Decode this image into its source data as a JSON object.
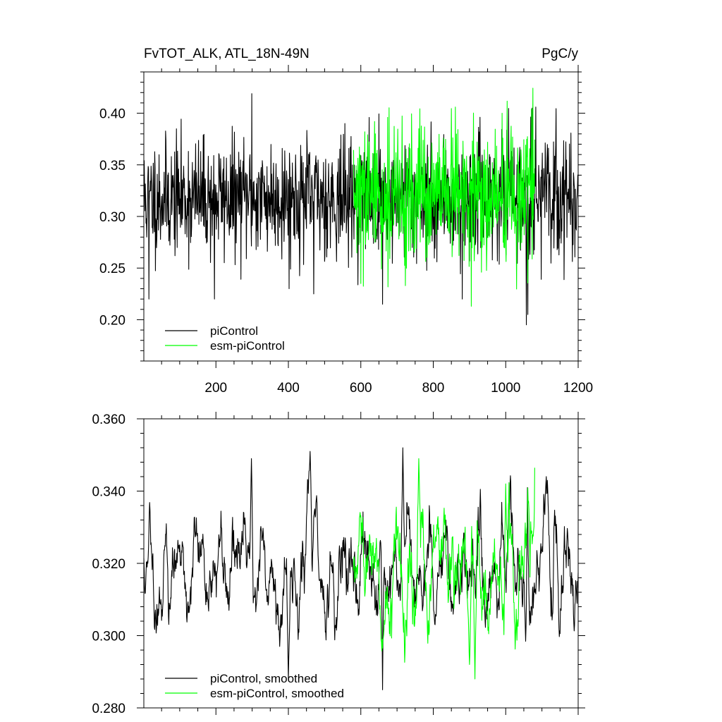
{
  "chart_data": [
    {
      "type": "line",
      "title_left": "FvTOT_ALK, ATL_18N-49N",
      "title_right": "PgC/y",
      "xlim": [
        1,
        1200
      ],
      "ylim": [
        0.16,
        0.44
      ],
      "xticks": [
        200,
        400,
        600,
        800,
        1000,
        1200
      ],
      "xtick_labels": [
        "200",
        "400",
        "600",
        "800",
        "1000",
        "1200"
      ],
      "yticks": [
        0.2,
        0.25,
        0.3,
        0.35,
        0.4
      ],
      "ytick_labels": [
        "0.20",
        "0.25",
        "0.30",
        "0.35",
        "0.40"
      ],
      "grid": false,
      "legend_position": "bottom-left",
      "series": [
        {
          "name": "piControl",
          "color": "#000000",
          "x_range": [
            1,
            1200
          ],
          "mean": 0.318,
          "std": 0.028,
          "seed": 11,
          "spikes": [
            [
              15,
              0.22
            ],
            [
              299,
              0.419
            ],
            [
              196,
              0.22
            ],
            [
              1057,
              0.195
            ],
            [
              1061,
              0.205
            ],
            [
              1073,
              0.405
            ],
            [
              660,
              0.215
            ],
            [
              880,
              0.22
            ],
            [
              470,
              0.225
            ],
            [
              402,
              0.23
            ],
            [
              1083,
              0.406
            ]
          ]
        },
        {
          "name": "esm-piControl",
          "color": "#00ff00",
          "x_range": [
            580,
            1080
          ],
          "mean": 0.318,
          "std": 0.033,
          "seed": 29,
          "spikes": [
            [
              861,
              0.406
            ],
            [
              1071,
              0.404
            ],
            [
              905,
              0.213
            ],
            [
              600,
              0.235
            ],
            [
              640,
              0.38
            ],
            [
              760,
              0.385
            ],
            [
              990,
              0.4
            ]
          ]
        }
      ]
    },
    {
      "type": "line",
      "xlim": [
        1,
        1200
      ],
      "ylim": [
        0.28,
        0.36
      ],
      "xticks": [
        200,
        400,
        600,
        800,
        1000,
        1200
      ],
      "yticks": [
        0.28,
        0.3,
        0.32,
        0.34,
        0.36
      ],
      "ytick_labels": [
        "0.280",
        "0.300",
        "0.320",
        "0.340",
        "0.360"
      ],
      "grid": false,
      "legend_position": "bottom-left",
      "series": [
        {
          "name": "piControl, smoothed",
          "color": "#000000",
          "x_range": [
            1,
            1200
          ],
          "mean": 0.318,
          "std": 0.0085,
          "seed": 11,
          "spikes": [
            [
              460,
              0.351
            ],
            [
              298,
              0.349
            ],
            [
              716,
              0.352
            ],
            [
              660,
              0.351
            ],
            [
              400,
              0.288
            ],
            [
              660,
              0.285
            ],
            [
              1057,
              0.287
            ],
            [
              1060,
              0.341
            ]
          ]
        },
        {
          "name": "esm-piControl, smoothed",
          "color": "#00ff00",
          "x_range": [
            580,
            1080
          ],
          "mean": 0.318,
          "std": 0.0095,
          "seed": 29,
          "spikes": [
            [
              760,
              0.349
            ],
            [
              915,
              0.288
            ],
            [
              1000,
              0.342
            ],
            [
              900,
              0.292
            ]
          ]
        }
      ]
    }
  ]
}
